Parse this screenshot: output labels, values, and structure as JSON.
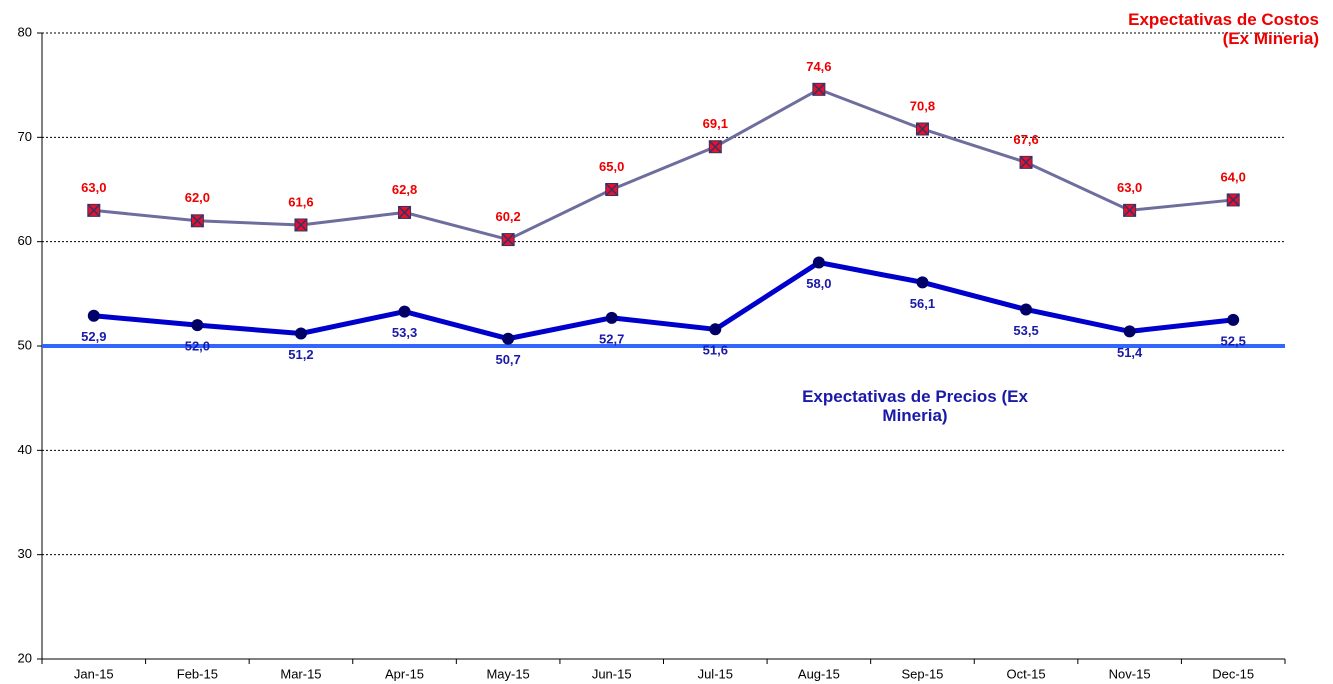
{
  "chart_data": {
    "type": "line",
    "categories": [
      "Jan-15",
      "Feb-15",
      "Mar-15",
      "Apr-15",
      "May-15",
      "Jun-15",
      "Jul-15",
      "Aug-15",
      "Sep-15",
      "Oct-15",
      "Nov-15",
      "Dec-15"
    ],
    "series": [
      {
        "name": "Expectativas de Costos (Ex Mineria)",
        "color": "#6e6e9e",
        "marker": "square-x",
        "marker_color": "#e8102a",
        "label_color": "#ee0000",
        "label_position": "above",
        "values": [
          63.0,
          62.0,
          61.6,
          62.8,
          60.2,
          65.0,
          69.1,
          74.6,
          70.8,
          67.6,
          63.0,
          64.0
        ],
        "value_labels": [
          "63,0",
          "62,0",
          "61,6",
          "62,8",
          "60,2",
          "65,0",
          "69,1",
          "74,6",
          "70,8",
          "67,6",
          "63,0",
          "64,0"
        ]
      },
      {
        "name": "Expectativas de Precios (Ex Mineria)",
        "color": "#0000cc",
        "marker": "circle",
        "marker_color": "#000066",
        "label_color": "#1a1aa8",
        "label_position": "below",
        "values": [
          52.9,
          52.0,
          51.2,
          53.3,
          50.7,
          52.7,
          51.6,
          58.0,
          56.1,
          53.5,
          51.4,
          52.5
        ],
        "value_labels": [
          "52,9",
          "52,0",
          "51,2",
          "53,3",
          "50,7",
          "52,7",
          "51,6",
          "58,0",
          "56,1",
          "53,5",
          "51,4",
          "52,5"
        ]
      }
    ],
    "reference_line": {
      "value": 50,
      "color": "#3366ff"
    },
    "ylim": [
      20,
      80
    ],
    "yticks": [
      20,
      30,
      40,
      50,
      60,
      70,
      80
    ],
    "grid": true
  }
}
